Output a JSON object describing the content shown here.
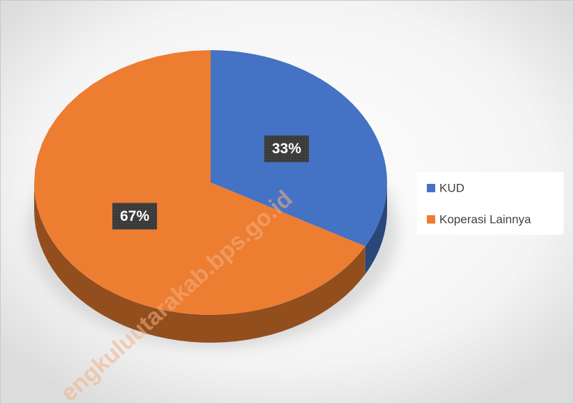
{
  "chart_data": {
    "type": "pie",
    "categories": [
      "KUD",
      "Koperasi Lainnya"
    ],
    "values": [
      33,
      67
    ],
    "value_labels": [
      "33%",
      "67%"
    ],
    "colors": [
      "#4472c4",
      "#ed7d31"
    ],
    "legend": "right",
    "watermark": "engkuluutarakab.bps.go.id"
  }
}
